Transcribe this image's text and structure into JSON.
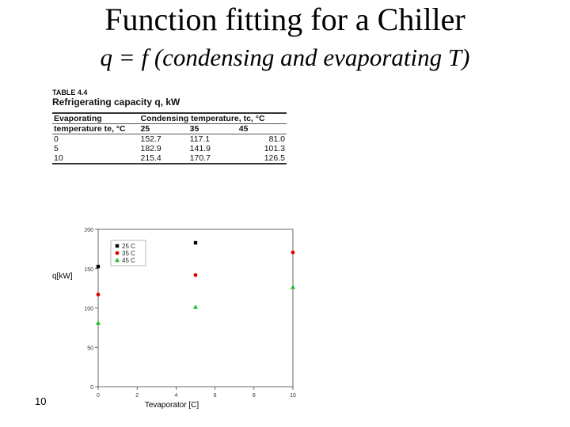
{
  "slide": {
    "title": "Function fitting for a Chiller",
    "subtitle": "q = f (condensing and evaporating T)",
    "page_number": "10"
  },
  "table": {
    "label": "TABLE 4.4",
    "caption": "Refrigerating capacity q, kW",
    "row_header": [
      "Evaporating",
      "temperature te, °C"
    ],
    "col_header": "Condensing temperature, tc, °C",
    "columns": [
      "25",
      "35",
      "45"
    ],
    "rows": [
      {
        "te": "0",
        "values": [
          "152.7",
          "117.1",
          "81.0"
        ]
      },
      {
        "te": "5",
        "values": [
          "182.9",
          "141.9",
          "101.3"
        ]
      },
      {
        "te": "10",
        "values": [
          "215.4",
          "170.7",
          "126.5"
        ]
      }
    ]
  },
  "chart_data": {
    "type": "scatter",
    "xlabel": "Tevaporator [C]",
    "ylabel": "q[kW]",
    "xlim": [
      0,
      10
    ],
    "ylim": [
      0,
      200
    ],
    "xticks": [
      0,
      2,
      4,
      6,
      8,
      10
    ],
    "yticks": [
      0,
      50,
      100,
      150,
      200
    ],
    "legend_position": "top-left",
    "series": [
      {
        "name": "25 C",
        "color": "#000000",
        "marker": "square",
        "x": [
          0,
          5,
          10
        ],
        "y": [
          152.7,
          182.9,
          215.4
        ]
      },
      {
        "name": "35 C",
        "color": "#dd0000",
        "marker": "circle",
        "x": [
          0,
          5,
          10
        ],
        "y": [
          117.1,
          141.9,
          170.7
        ]
      },
      {
        "name": "45 C",
        "color": "#22bb22",
        "marker": "triangle",
        "x": [
          0,
          5,
          10
        ],
        "y": [
          81.0,
          101.3,
          126.5
        ]
      }
    ]
  }
}
